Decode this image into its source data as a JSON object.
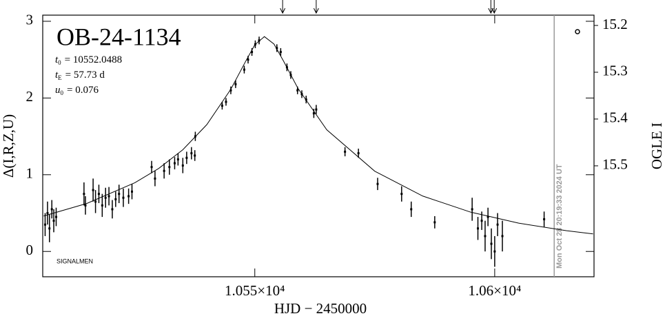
{
  "chart_data": {
    "type": "scatter",
    "title": "OB-24-1134",
    "parameters": [
      {
        "symbol": "t",
        "subscript": "0",
        "text": "= 10552.0488"
      },
      {
        "symbol": "t",
        "subscript": "E",
        "text": "= 57.73 d"
      },
      {
        "symbol": "u",
        "subscript": "0",
        "text": "= 0.076"
      }
    ],
    "annotation": "SIGNALMEN",
    "timestamp": "Mon Oct 28 20:19:33 2024 UT",
    "current_time": 10612.4,
    "x_label": "HJD − 2450000",
    "y_label": "Δ(I,R,Z,U)",
    "y2_label": "OGLE I",
    "xlim": [
      10505.8,
      10620.7
    ],
    "xticks": [
      {
        "value": 10550,
        "label": "1.055×10⁴"
      },
      {
        "value": 10600,
        "label": "1.06×10⁴"
      }
    ],
    "ylim": [
      -0.33,
      3.08
    ],
    "yticks": [
      0,
      1,
      2,
      3
    ],
    "y2lim": [
      15.737,
      15.178
    ],
    "y2ticks": [
      15.2,
      15.3,
      15.4,
      15.5
    ],
    "arrows": [
      10555.8,
      10562.8,
      10599.2,
      10599.9
    ],
    "series": [
      {
        "color": "#000000",
        "x": [
          10506.3,
          10506.8,
          10507.2,
          10507.7,
          10508.1,
          10508.6,
          10514.4,
          10514.7,
          10516.3,
          10516.8,
          10517.5,
          10518.2,
          10518.9,
          10519.6,
          10520.3,
          10521.0,
          10521.7,
          10522.6,
          10523.7,
          10524.4,
          10528.5,
          10529.2,
          10531.1,
          10532.2,
          10533.3,
          10534.0,
          10535.0,
          10535.8,
          10536.8,
          10537.5,
          10537.6,
          10543.2,
          10544.0,
          10545.0,
          10546.0,
          10547.8,
          10548.6,
          10549.4,
          10550.1,
          10550.9,
          10554.6,
          10555.4,
          10556.7,
          10557.5,
          10558.9,
          10559.8,
          10560.7,
          10562.3,
          10562.8,
          10568.8,
          10571.6,
          10575.6,
          10580.6,
          10582.6,
          10587.5,
          10595.3,
          10596.5,
          10597.3,
          10598.0,
          10598.6,
          10599.3,
          10600.0,
          10600.6,
          10601.6,
          10610.3
        ],
        "values": [
          0.35,
          0.5,
          0.3,
          0.55,
          0.4,
          0.45,
          0.75,
          0.6,
          0.8,
          0.65,
          0.75,
          0.6,
          0.7,
          0.72,
          0.55,
          0.68,
          0.75,
          0.7,
          0.72,
          0.78,
          1.1,
          0.95,
          1.05,
          1.1,
          1.15,
          1.2,
          1.12,
          1.22,
          1.28,
          1.25,
          1.5,
          1.9,
          1.95,
          2.1,
          2.18,
          2.37,
          2.5,
          2.6,
          2.7,
          2.75,
          2.65,
          2.6,
          2.4,
          2.3,
          2.1,
          2.05,
          1.98,
          1.8,
          1.85,
          1.3,
          1.28,
          0.88,
          0.75,
          0.55,
          0.38,
          0.55,
          0.3,
          0.4,
          0.2,
          0.45,
          0.1,
          0.0,
          0.35,
          0.2,
          0.42
        ],
        "errors": [
          0.15,
          0.15,
          0.18,
          0.12,
          0.15,
          0.12,
          0.15,
          0.12,
          0.15,
          0.15,
          0.12,
          0.15,
          0.13,
          0.12,
          0.12,
          0.1,
          0.12,
          0.12,
          0.1,
          0.1,
          0.08,
          0.1,
          0.1,
          0.1,
          0.08,
          0.08,
          0.1,
          0.08,
          0.08,
          0.07,
          0.06,
          0.05,
          0.05,
          0.05,
          0.05,
          0.05,
          0.05,
          0.05,
          0.05,
          0.05,
          0.05,
          0.05,
          0.05,
          0.05,
          0.05,
          0.05,
          0.05,
          0.06,
          0.06,
          0.06,
          0.06,
          0.08,
          0.1,
          0.1,
          0.08,
          0.15,
          0.15,
          0.12,
          0.2,
          0.12,
          0.2,
          0.2,
          0.15,
          0.2,
          0.1
        ]
      }
    ],
    "model": {
      "color": "#000000",
      "x": [
        10506,
        10515,
        10525,
        10530,
        10535,
        10540,
        10545,
        10548,
        10550,
        10552,
        10554,
        10556,
        10559,
        10565,
        10575,
        10585,
        10595,
        10605,
        10615,
        10620.5
      ],
      "values": [
        0.462,
        0.626,
        0.895,
        1.083,
        1.326,
        1.653,
        2.114,
        2.467,
        2.694,
        2.8,
        2.703,
        2.48,
        2.125,
        1.586,
        1.046,
        0.722,
        0.512,
        0.369,
        0.27,
        0.229
      ]
    }
  }
}
